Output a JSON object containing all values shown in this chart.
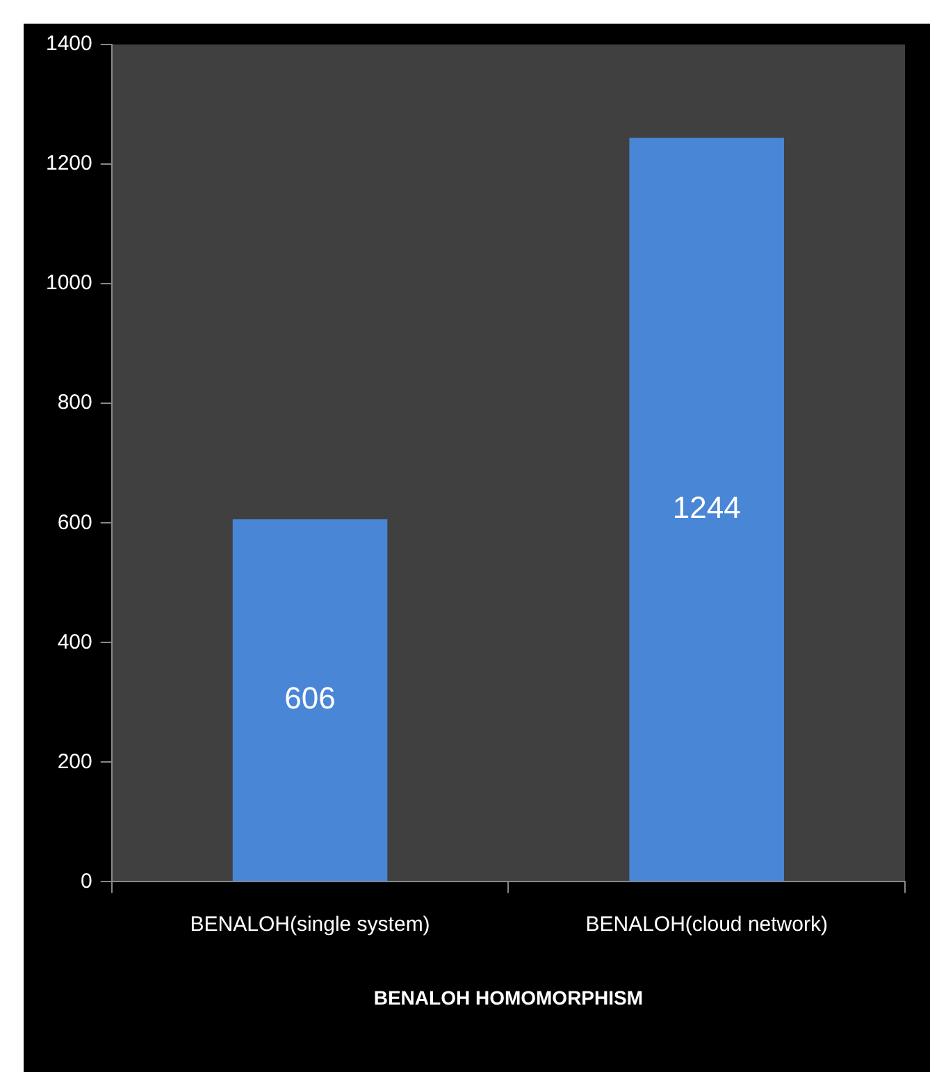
{
  "chart_data": {
    "type": "bar",
    "xlabel": "BENALOH HOMOMORPHISM",
    "categories": [
      "BENALOH(single system)",
      "BENALOH(cloud network)"
    ],
    "values": [
      606,
      1244
    ],
    "color": "#4a86d6",
    "ylim": [
      0,
      1400
    ],
    "yticks": [
      0,
      200,
      400,
      600,
      800,
      1000,
      1200,
      1400
    ],
    "grid": false,
    "legend": false,
    "data_labels": true
  }
}
